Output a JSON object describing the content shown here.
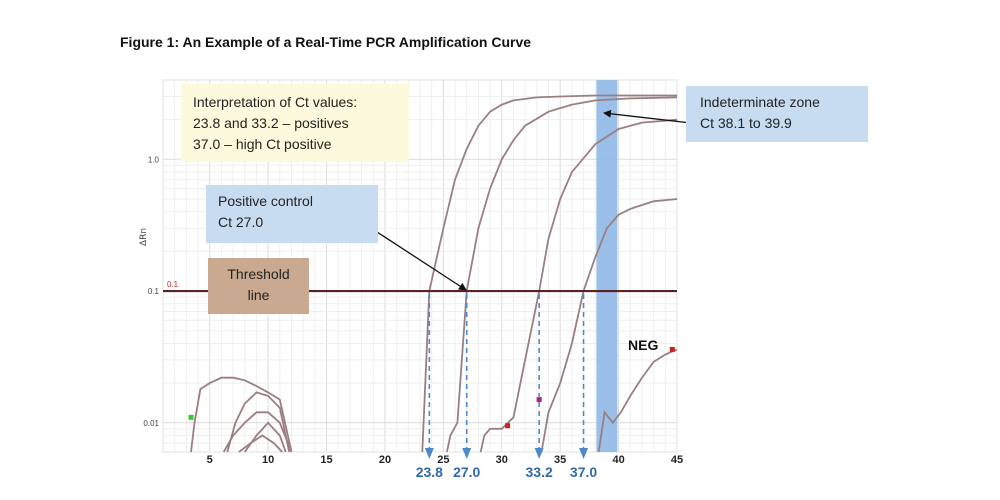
{
  "figure_title": "Figure 1:  An Example of a Real-Time PCR Amplification Curve",
  "annotations": {
    "interpretation": [
      "Interpretation of Ct values:",
      "23.8 and 33.2 – positives",
      "37.0 – high Ct positive"
    ],
    "positive_control": [
      "Positive control",
      "Ct 27.0"
    ],
    "threshold": [
      "Threshold",
      "line"
    ],
    "indeterminate": [
      "Indeterminate zone",
      "Ct 38.1 to 39.9"
    ],
    "neg": "NEG",
    "threshold_value_label": "0.1"
  },
  "colors": {
    "curve": "#9b7f80",
    "threshold": "#5a2323",
    "zone": "#8fb8e6",
    "ct_arrow": "#4f88c8",
    "ct_text": "#2f6aa8"
  },
  "chart_data": {
    "type": "line",
    "title": "",
    "xlabel": "",
    "ylabel": "ΔRn",
    "x_scale": "linear",
    "y_scale": "log",
    "xlim": [
      1,
      45
    ],
    "ylim": [
      0.006,
      4
    ],
    "x_ticks": [
      "5",
      "10",
      "15",
      "20",
      "25",
      "30",
      "35",
      "40",
      "45"
    ],
    "y_ticks": [
      "1.0",
      "0.1",
      "0.01"
    ],
    "y_tick_values": [
      1.0,
      0.1,
      0.01
    ],
    "grid": true,
    "threshold": 0.1,
    "indeterminate_zone": [
      38.1,
      39.9
    ],
    "ct_values": [
      23.8,
      27.0,
      33.2,
      37.0
    ],
    "ct_labels": [
      "23.8",
      "27.0",
      "33.2",
      "37.0"
    ],
    "series": [
      {
        "x": [
          23.2,
          23.8,
          25,
          26,
          27,
          28,
          29,
          30,
          31,
          33,
          35,
          38,
          41,
          45
        ],
        "y": [
          0.006,
          0.1,
          0.3,
          0.7,
          1.2,
          1.8,
          2.3,
          2.6,
          2.8,
          2.95,
          3.0,
          3.05,
          3.05,
          3.05
        ]
      },
      {
        "x": [
          25.3,
          25.6,
          26.2,
          27,
          28,
          29,
          30,
          31,
          32,
          34,
          36,
          38,
          41,
          45
        ],
        "y": [
          0.006,
          0.008,
          0.01,
          0.1,
          0.3,
          0.6,
          1.0,
          1.4,
          1.8,
          2.3,
          2.6,
          2.8,
          2.9,
          2.95
        ]
      },
      {
        "x": [
          28.2,
          28.5,
          29,
          30,
          31,
          32,
          33.2,
          34,
          35,
          36,
          38,
          40,
          42,
          45
        ],
        "y": [
          0.006,
          0.008,
          0.009,
          0.009,
          0.011,
          0.03,
          0.1,
          0.25,
          0.5,
          0.8,
          1.3,
          1.7,
          1.9,
          2.0
        ]
      },
      {
        "x": [
          33.4,
          34,
          35,
          36,
          37,
          38,
          39,
          40,
          41,
          42,
          43,
          45
        ],
        "y": [
          0.006,
          0.012,
          0.02,
          0.04,
          0.1,
          0.18,
          0.3,
          0.38,
          0.42,
          0.45,
          0.48,
          0.5
        ]
      },
      {
        "name": "NEG",
        "x": [
          38.3,
          38.8,
          39.5,
          40.2,
          41,
          42,
          43,
          44,
          45
        ],
        "y": [
          0.006,
          0.012,
          0.01,
          0.012,
          0.016,
          0.022,
          0.029,
          0.033,
          0.036
        ]
      },
      {
        "x": [
          3.4,
          3.7,
          4.2,
          5,
          6,
          7,
          8,
          9,
          10,
          11,
          12
        ],
        "y": [
          0.006,
          0.01,
          0.018,
          0.02,
          0.022,
          0.022,
          0.021,
          0.019,
          0.017,
          0.015,
          0.006
        ]
      },
      {
        "x": [
          6.5,
          7.2,
          8,
          9,
          10,
          11,
          11.8
        ],
        "y": [
          0.006,
          0.01,
          0.014,
          0.017,
          0.016,
          0.013,
          0.006
        ]
      },
      {
        "x": [
          6.2,
          7,
          8,
          9,
          10,
          11,
          12
        ],
        "y": [
          0.006,
          0.008,
          0.01,
          0.012,
          0.012,
          0.01,
          0.006
        ]
      },
      {
        "x": [
          8,
          9,
          10,
          11,
          11.5
        ],
        "y": [
          0.006,
          0.008,
          0.01,
          0.008,
          0.006
        ]
      },
      {
        "x": [
          7.5,
          8.5,
          9.5,
          10.5,
          11.2
        ],
        "y": [
          0.006,
          0.007,
          0.008,
          0.007,
          0.006
        ]
      }
    ],
    "markers": [
      {
        "x": 3.4,
        "y": 0.011,
        "color": "#33cc33"
      },
      {
        "x": 30.5,
        "y": 0.0095,
        "color": "#cc2222"
      },
      {
        "x": 33.2,
        "y": 0.015,
        "color": "#b02080"
      },
      {
        "x": 44.6,
        "y": 0.036,
        "color": "#cc2222"
      }
    ]
  }
}
